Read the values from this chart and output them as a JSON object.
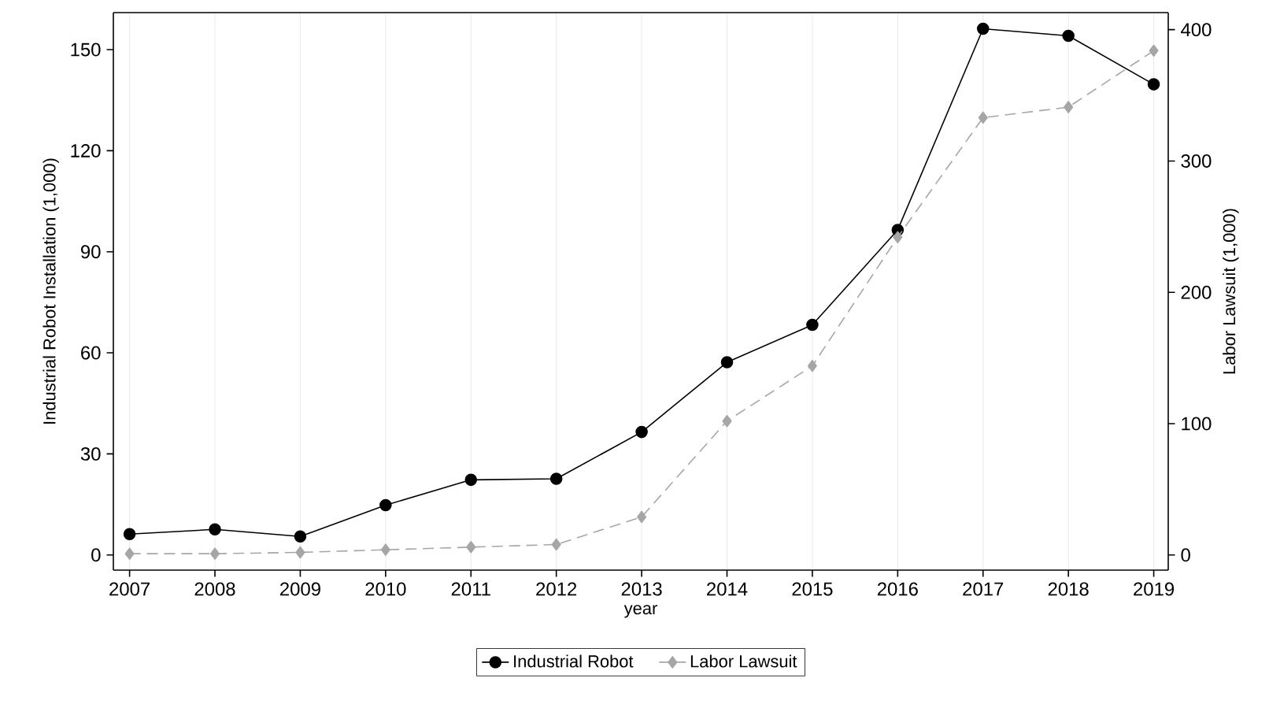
{
  "chart_data": {
    "type": "line",
    "xlabel": "year",
    "ylabel": "Industrial Robot Installation (1,000)",
    "y2label": "Labor Lawsuit (1,000)",
    "x": [
      2007,
      2008,
      2009,
      2010,
      2011,
      2012,
      2013,
      2014,
      2015,
      2016,
      2017,
      2018,
      2019
    ],
    "series": [
      {
        "name": "Industrial Robot",
        "color": "#000000",
        "marker": "circle",
        "line_style": "solid",
        "values": [
          6.2,
          7.6,
          5.5,
          14.8,
          22.3,
          22.6,
          36.5,
          57.2,
          68.3,
          96.5,
          156.2,
          154.1,
          139.7
        ]
      },
      {
        "name": "Labor Lawsuit",
        "color": "#a6a6a6",
        "marker": "diamond",
        "line_style": "dashed",
        "axis": "y2",
        "values": [
          1,
          1,
          2,
          4,
          6,
          8,
          29,
          102,
          144,
          242,
          333,
          341,
          384
        ]
      }
    ],
    "xlim": [
      2006.81,
      2019.17
    ],
    "xticks": [
      2007,
      2008,
      2009,
      2010,
      2011,
      2012,
      2013,
      2014,
      2015,
      2016,
      2017,
      2018,
      2019
    ],
    "ylim": [
      -4.5,
      161
    ],
    "yticks": [
      0,
      30,
      60,
      90,
      120,
      150
    ],
    "y2lim": [
      -11.5,
      413
    ],
    "y2ticks": [
      0,
      100,
      200,
      300,
      400
    ],
    "grid": "x",
    "legend": "bottom"
  }
}
